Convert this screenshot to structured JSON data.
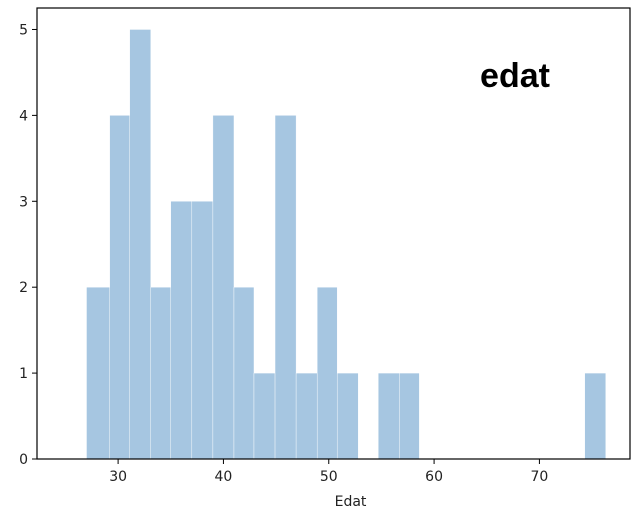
{
  "chart_data": {
    "type": "bar",
    "subtype": "histogram",
    "bins": [
      {
        "x0": 27.0,
        "x1": 29.2,
        "count": 2
      },
      {
        "x0": 29.2,
        "x1": 31.1,
        "count": 4
      },
      {
        "x0": 31.1,
        "x1": 33.1,
        "count": 5
      },
      {
        "x0": 33.1,
        "x1": 35.0,
        "count": 2
      },
      {
        "x0": 35.0,
        "x1": 37.0,
        "count": 3
      },
      {
        "x0": 37.0,
        "x1": 39.0,
        "count": 3
      },
      {
        "x0": 39.0,
        "x1": 41.0,
        "count": 4
      },
      {
        "x0": 41.0,
        "x1": 42.9,
        "count": 2
      },
      {
        "x0": 42.9,
        "x1": 44.9,
        "count": 1
      },
      {
        "x0": 44.9,
        "x1": 46.9,
        "count": 4
      },
      {
        "x0": 46.9,
        "x1": 48.9,
        "count": 1
      },
      {
        "x0": 48.9,
        "x1": 50.8,
        "count": 2
      },
      {
        "x0": 50.8,
        "x1": 52.8,
        "count": 1
      },
      {
        "x0": 52.8,
        "x1": 54.7,
        "count": 0
      },
      {
        "x0": 54.7,
        "x1": 56.7,
        "count": 1
      },
      {
        "x0": 56.7,
        "x1": 58.6,
        "count": 1
      },
      {
        "x0": 58.6,
        "x1": 60.6,
        "count": 0
      },
      {
        "x0": 60.6,
        "x1": 62.6,
        "count": 0
      },
      {
        "x0": 62.6,
        "x1": 64.5,
        "count": 0
      },
      {
        "x0": 64.5,
        "x1": 66.5,
        "count": 0
      },
      {
        "x0": 66.5,
        "x1": 68.4,
        "count": 0
      },
      {
        "x0": 68.4,
        "x1": 70.4,
        "count": 0
      },
      {
        "x0": 70.4,
        "x1": 72.4,
        "count": 0
      },
      {
        "x0": 72.4,
        "x1": 74.3,
        "count": 0
      },
      {
        "x0": 74.3,
        "x1": 76.3,
        "count": 1
      }
    ],
    "xlabel": "Edat",
    "ylabel": "",
    "annotation": "edat",
    "xlim": [
      22.3,
      78.6
    ],
    "ylim": [
      0,
      5.25
    ],
    "xticks": [
      30,
      40,
      50,
      60,
      70
    ],
    "yticks": [
      0,
      1,
      2,
      3,
      4,
      5
    ],
    "grid": false,
    "bar_color": "#a6c6e1"
  }
}
